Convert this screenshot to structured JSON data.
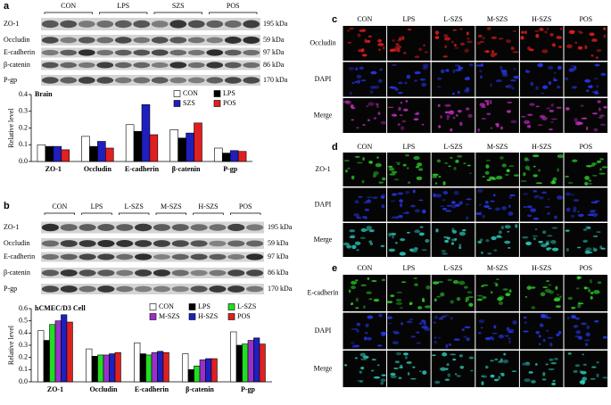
{
  "panel_labels": [
    "a",
    "b",
    "c",
    "d",
    "e"
  ],
  "blot_a": {
    "groups": [
      "CON",
      "LPS",
      "SZS",
      "POS"
    ],
    "proteins": [
      "ZO-1",
      "Occludin",
      "E-cadherin",
      "β-catenin",
      "P-gp"
    ],
    "sizes": [
      "195 kDa",
      "59 kDa",
      "97 kDa",
      "86 kDa",
      "170 kDa"
    ]
  },
  "blot_b": {
    "groups": [
      "CON",
      "LPS",
      "L-SZS",
      "M-SZS",
      "H-SZS",
      "POS"
    ],
    "proteins": [
      "ZO-1",
      "Occludin",
      "E-cadherin",
      "β-catenin",
      "P-gp"
    ],
    "sizes": [
      "195 kDa",
      "59 kDa",
      "97 kDa",
      "86 kDa",
      "170 kDa"
    ]
  },
  "chart_data": [
    {
      "type": "bar",
      "title": "Brain",
      "y_label": "Relative level",
      "categories": [
        "ZO-1",
        "Occludin",
        "E-cadherin",
        "β-catenin",
        "P-gp"
      ],
      "series": [
        {
          "name": "CON",
          "color": "#ffffff",
          "values": [
            0.1,
            0.15,
            0.22,
            0.19,
            0.08
          ]
        },
        {
          "name": "LPS",
          "color": "#000000",
          "values": [
            0.09,
            0.09,
            0.18,
            0.14,
            0.05
          ]
        },
        {
          "name": "SZS",
          "color": "#1f1fbf",
          "values": [
            0.09,
            0.12,
            0.34,
            0.17,
            0.065
          ]
        },
        {
          "name": "POS",
          "color": "#e02020",
          "values": [
            0.07,
            0.08,
            0.16,
            0.23,
            0.06
          ]
        }
      ],
      "ylim": [
        0,
        0.4
      ],
      "yticks": [
        {
          "value": 0,
          "label": "0.0"
        },
        0.1,
        0.2,
        0.3,
        0.4
      ]
    },
    {
      "type": "bar",
      "title": "hCMEC/D3 Cell",
      "y_label": "Relative level",
      "categories": [
        "ZO-1",
        "Occludin",
        "E-cadherin",
        "β-catenin",
        "P-gp"
      ],
      "series": [
        {
          "name": "CON",
          "color": "#ffffff",
          "values": [
            0.42,
            0.27,
            0.32,
            0.23,
            0.41
          ]
        },
        {
          "name": "LPS",
          "color": "#000000",
          "values": [
            0.34,
            0.21,
            0.23,
            0.1,
            0.3
          ]
        },
        {
          "name": "L-SZS",
          "color": "#22dd22",
          "values": [
            0.47,
            0.22,
            0.22,
            0.13,
            0.31
          ]
        },
        {
          "name": "M-SZS",
          "color": "#9b30c8",
          "values": [
            0.5,
            0.22,
            0.24,
            0.18,
            0.34
          ]
        },
        {
          "name": "H-SZS",
          "color": "#1f1fbf",
          "values": [
            0.55,
            0.23,
            0.25,
            0.19,
            0.36
          ]
        },
        {
          "name": "POS",
          "color": "#e02020",
          "values": [
            0.49,
            0.24,
            0.24,
            0.19,
            0.31
          ]
        }
      ],
      "ylim": [
        0,
        0.6
      ],
      "yticks": [
        {
          "value": 0,
          "label": "0.0"
        },
        0.1,
        0.2,
        0.3,
        0.4,
        0.5,
        0.6
      ]
    }
  ],
  "images": [
    {
      "columns": [
        "CON",
        "LPS",
        "L-SZS",
        "M-SZS",
        "H-SZS",
        "POS"
      ],
      "rows": [
        "Occludin",
        "DAPI",
        "Merge"
      ]
    },
    {
      "columns": [
        "CON",
        "LPS",
        "L-SZS",
        "M-SZS",
        "H-SZS",
        "POS"
      ],
      "rows": [
        "ZO-1",
        "DAPI",
        "Merge"
      ]
    },
    {
      "columns": [
        "CON",
        "LPS",
        "L-SZS",
        "M-SZS",
        "H-SZS",
        "POS"
      ],
      "rows": [
        "E-cadherin",
        "DAPI",
        "Merge"
      ]
    }
  ]
}
